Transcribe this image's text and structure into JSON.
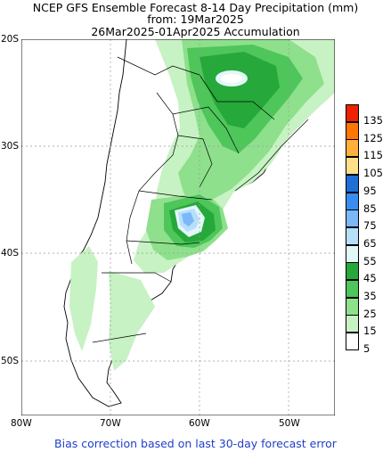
{
  "title": {
    "line1": "NCEP GFS Ensemble Forecast 8-14 Day Precipitation (mm)",
    "line2": "from: 19Mar2025",
    "line3": "26Mar2025-01Apr2025 Accumulation"
  },
  "footer": "Bias correction based on last 30-day forecast error",
  "axes": {
    "lat_labels": [
      "20S",
      "30S",
      "40S",
      "50S"
    ],
    "lon_labels": [
      "80W",
      "70W",
      "60W",
      "50W"
    ]
  },
  "legend": {
    "levels": [
      {
        "label": "135",
        "color": "#ee2200"
      },
      {
        "label": "125",
        "color": "#ff7700"
      },
      {
        "label": "115",
        "color": "#ffb03c"
      },
      {
        "label": "105",
        "color": "#fee08a"
      },
      {
        "label": "95",
        "color": "#1f6fd6"
      },
      {
        "label": "85",
        "color": "#3b8cf0"
      },
      {
        "label": "75",
        "color": "#7ab8f7"
      },
      {
        "label": "65",
        "color": "#b7dffb"
      },
      {
        "label": "55",
        "color": "#e2f8f8"
      },
      {
        "label": "45",
        "color": "#27a83a"
      },
      {
        "label": "35",
        "color": "#4ec65a"
      },
      {
        "label": "25",
        "color": "#8ee08c"
      },
      {
        "label": "15",
        "color": "#c7f2c3"
      },
      {
        "label": "5",
        "color": "#ffffff"
      }
    ]
  },
  "map_data": {
    "region": "South America (Southern Cone)",
    "lon_range": [
      -80,
      -45
    ],
    "lat_range": [
      -55,
      -20
    ],
    "grid": true,
    "projection": "equirectangular"
  }
}
